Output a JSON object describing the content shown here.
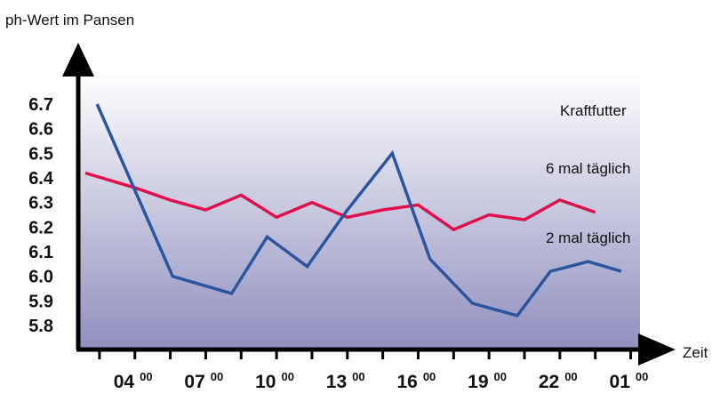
{
  "chart_data": {
    "type": "line",
    "ylabel": "ph-Wert im Pansen",
    "xlabel": "Zeit",
    "ylim": [
      5.75,
      6.75
    ],
    "yticks": [
      "6.7",
      "6.6",
      "6.5",
      "6.4",
      "6.3",
      "6.2",
      "6.1",
      "6.0",
      "5.9",
      "5.8"
    ],
    "ytick_values": [
      6.7,
      6.6,
      6.5,
      6.4,
      6.3,
      6.2,
      6.1,
      6.0,
      5.9,
      5.8
    ],
    "xticks": [
      {
        "hour": "04",
        "minutes": "00",
        "value": 4
      },
      {
        "hour": "07",
        "minutes": "00",
        "value": 7
      },
      {
        "hour": "10",
        "minutes": "00",
        "value": 10
      },
      {
        "hour": "13",
        "minutes": "00",
        "value": 13
      },
      {
        "hour": "16",
        "minutes": "00",
        "value": 16
      },
      {
        "hour": "19",
        "minutes": "00",
        "value": 19
      },
      {
        "hour": "22",
        "minutes": "00",
        "value": 22
      },
      {
        "hour": "01",
        "minutes": "00",
        "value": 25
      }
    ],
    "xlim": [
      1.6,
      26.9
    ],
    "annotations": [
      "Kraftfutter",
      "6 mal täglich",
      "2 mal täglich"
    ],
    "series": [
      {
        "color": "#e0114a",
        "x": [
          1.9,
          4.0,
          5.5,
          7.0,
          8.5,
          10.0,
          11.5,
          13.0,
          14.5,
          16.0,
          17.5,
          19.0,
          20.5,
          22.0,
          23.5
        ],
        "y": [
          6.42,
          6.36,
          6.31,
          6.27,
          6.33,
          6.24,
          6.3,
          6.24,
          6.27,
          6.29,
          6.19,
          6.25,
          6.23,
          6.31,
          6.26
        ]
      },
      {
        "color": "#2c55a0",
        "x": [
          2.4,
          5.6,
          8.1,
          9.6,
          11.3,
          13.0,
          14.9,
          16.5,
          18.3,
          20.2,
          21.6,
          23.2,
          24.6
        ],
        "y": [
          6.7,
          6.0,
          5.93,
          6.16,
          6.04,
          6.27,
          6.5,
          6.07,
          5.89,
          5.84,
          6.02,
          6.06,
          6.02
        ]
      }
    ],
    "background_gradient": [
      "#ffffff",
      "#8f8fbf"
    ],
    "grid": false
  }
}
